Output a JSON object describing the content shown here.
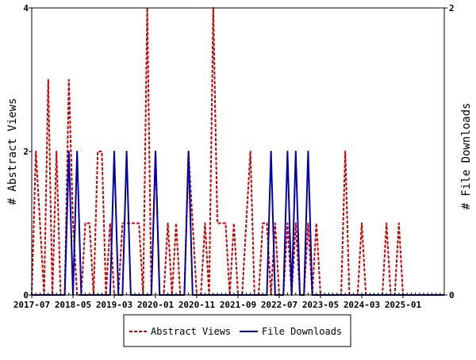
{
  "chart_data": {
    "type": "line",
    "title": "",
    "xlabel": "",
    "ylabel_left": "# Abstract Views",
    "ylabel_right": "# File Downloads",
    "ylim_left": [
      0,
      4
    ],
    "ylim_right": [
      0,
      2
    ],
    "yticks_left": [
      0,
      2,
      4
    ],
    "yticks_right": [
      0,
      2
    ],
    "xtick_labels": [
      "2017-07",
      "2018-05",
      "2019-03",
      "2020-01",
      "2020-11",
      "2021-09",
      "2022-07",
      "2023-05",
      "2024-03",
      "2025-01"
    ],
    "grid": false,
    "legend_placement": "bottom-center",
    "x_start": "2017-07",
    "x_end": "2025-11",
    "series": [
      {
        "name": "Abstract Views",
        "axis": "left",
        "color": "#cc0000",
        "dash": "dashed",
        "x": [
          "2017-07",
          "2017-08",
          "2017-09",
          "2017-10",
          "2017-11",
          "2017-12",
          "2018-01",
          "2018-02",
          "2018-03",
          "2018-04",
          "2018-05",
          "2018-06",
          "2018-07",
          "2018-08",
          "2018-09",
          "2018-10",
          "2018-11",
          "2018-12",
          "2019-01",
          "2019-02",
          "2019-03",
          "2019-04",
          "2019-05",
          "2019-06",
          "2019-07",
          "2019-08",
          "2019-09",
          "2019-10",
          "2019-11",
          "2019-12",
          "2020-01",
          "2020-02",
          "2020-03",
          "2020-04",
          "2020-05",
          "2020-06",
          "2020-07",
          "2020-08",
          "2020-09",
          "2020-10",
          "2020-11",
          "2020-12",
          "2021-01",
          "2021-02",
          "2021-03",
          "2021-04",
          "2021-05",
          "2021-06",
          "2021-07",
          "2021-08",
          "2021-09",
          "2021-10",
          "2021-11",
          "2021-12",
          "2022-01",
          "2022-02",
          "2022-03",
          "2022-04",
          "2022-05",
          "2022-06",
          "2022-07",
          "2022-08",
          "2022-09",
          "2022-10",
          "2022-11",
          "2022-12",
          "2023-01",
          "2023-02",
          "2023-03",
          "2023-04",
          "2023-05",
          "2023-06",
          "2023-07",
          "2023-08",
          "2023-09",
          "2023-10",
          "2023-11",
          "2023-12",
          "2024-01",
          "2024-02",
          "2024-03",
          "2024-04",
          "2024-05",
          "2024-06",
          "2024-07",
          "2024-08",
          "2024-09",
          "2024-10",
          "2024-11",
          "2024-12",
          "2025-01",
          "2025-02",
          "2025-03",
          "2025-04",
          "2025-05",
          "2025-06",
          "2025-07",
          "2025-08",
          "2025-09",
          "2025-10",
          "2025-11"
        ],
        "values": [
          0,
          2,
          1,
          0,
          3,
          0,
          2,
          0,
          0,
          3,
          1,
          0,
          0,
          1,
          1,
          0,
          2,
          2,
          0,
          1,
          0,
          0,
          1,
          1,
          1,
          1,
          1,
          0,
          4,
          0,
          2,
          0,
          0,
          1,
          0,
          1,
          0,
          0,
          2,
          1,
          0,
          0,
          1,
          0,
          4,
          1,
          1,
          1,
          0,
          1,
          0,
          0,
          1,
          2,
          0,
          0,
          1,
          1,
          0,
          1,
          0,
          0,
          1,
          0,
          1,
          0,
          0,
          1,
          0,
          1,
          0,
          0,
          0,
          0,
          0,
          0,
          2,
          0,
          0,
          0,
          1,
          0,
          0,
          0,
          0,
          0,
          1,
          0,
          0,
          1,
          0,
          0,
          0,
          0,
          0,
          0,
          0,
          0,
          0,
          0,
          0
        ]
      },
      {
        "name": "File Downloads",
        "axis": "right",
        "color": "#0000aa",
        "dash": "solid",
        "x": [
          "2017-07",
          "2017-08",
          "2017-09",
          "2017-10",
          "2017-11",
          "2017-12",
          "2018-01",
          "2018-02",
          "2018-03",
          "2018-04",
          "2018-05",
          "2018-06",
          "2018-07",
          "2018-08",
          "2018-09",
          "2018-10",
          "2018-11",
          "2018-12",
          "2019-01",
          "2019-02",
          "2019-03",
          "2019-04",
          "2019-05",
          "2019-06",
          "2019-07",
          "2019-08",
          "2019-09",
          "2019-10",
          "2019-11",
          "2019-12",
          "2020-01",
          "2020-02",
          "2020-03",
          "2020-04",
          "2020-05",
          "2020-06",
          "2020-07",
          "2020-08",
          "2020-09",
          "2020-10",
          "2020-11",
          "2020-12",
          "2021-01",
          "2021-02",
          "2021-03",
          "2021-04",
          "2021-05",
          "2021-06",
          "2021-07",
          "2021-08",
          "2021-09",
          "2021-10",
          "2021-11",
          "2021-12",
          "2022-01",
          "2022-02",
          "2022-03",
          "2022-04",
          "2022-05",
          "2022-06",
          "2022-07",
          "2022-08",
          "2022-09",
          "2022-10",
          "2022-11",
          "2022-12",
          "2023-01",
          "2023-02",
          "2023-03",
          "2023-04",
          "2023-05",
          "2023-06",
          "2023-07",
          "2023-08",
          "2023-09",
          "2023-10",
          "2023-11",
          "2023-12",
          "2024-01",
          "2024-02",
          "2024-03",
          "2024-04",
          "2024-05",
          "2024-06",
          "2024-07",
          "2024-08",
          "2024-09",
          "2024-10",
          "2024-11",
          "2024-12",
          "2025-01",
          "2025-02",
          "2025-03",
          "2025-04",
          "2025-05",
          "2025-06",
          "2025-07",
          "2025-08",
          "2025-09",
          "2025-10",
          "2025-11"
        ],
        "values": [
          0,
          0,
          0,
          0,
          0,
          0,
          0,
          0,
          0,
          1,
          0,
          1,
          0,
          0,
          0,
          0,
          0,
          0,
          0,
          0,
          1,
          0,
          0,
          1,
          0,
          0,
          0,
          0,
          0,
          0,
          1,
          0,
          0,
          0,
          0,
          0,
          0,
          0,
          1,
          0,
          0,
          0,
          0,
          0,
          0,
          0,
          0,
          0,
          0,
          0,
          0,
          0,
          0,
          0,
          0,
          0,
          0,
          0,
          1,
          0,
          0,
          0,
          1,
          0,
          1,
          0,
          0,
          1,
          0,
          0,
          0,
          0,
          0,
          0,
          0,
          0,
          0,
          0,
          0,
          0,
          0,
          0,
          0,
          0,
          0,
          0,
          0,
          0,
          0,
          0,
          0,
          0,
          0,
          0,
          0,
          0,
          0,
          0,
          0,
          0,
          0
        ]
      }
    ]
  },
  "legend": {
    "items": [
      {
        "label": "Abstract Views",
        "color": "#cc0000",
        "dash": "dashed"
      },
      {
        "label": "File Downloads",
        "color": "#0000aa",
        "dash": "solid"
      }
    ]
  }
}
